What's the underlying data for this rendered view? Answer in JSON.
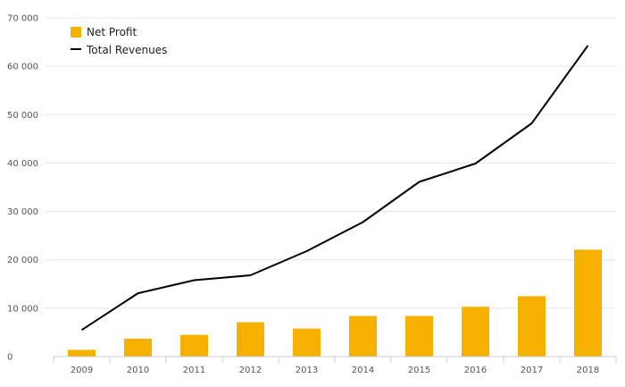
{
  "chart_data": {
    "type": "bar",
    "categories": [
      "2009",
      "2010",
      "2011",
      "2012",
      "2013",
      "2014",
      "2015",
      "2016",
      "2017",
      "2018"
    ],
    "series": [
      {
        "name": "Net Profit",
        "type": "bar",
        "color": "#f5b000",
        "values": [
          1400,
          3700,
          4500,
          7100,
          5800,
          8400,
          8400,
          10300,
          12500,
          22100
        ]
      },
      {
        "name": "Total Revenues",
        "type": "line",
        "color": "#000000",
        "values": [
          5500,
          13100,
          15800,
          16800,
          21800,
          27800,
          36100,
          39900,
          48200,
          64300
        ]
      }
    ],
    "title": "",
    "xlabel": "",
    "ylabel": "",
    "ylim": [
      0,
      70000
    ],
    "yticks": [
      "0",
      "10 000",
      "20 000",
      "30 000",
      "40 000",
      "50 000",
      "60 000",
      "70 000"
    ],
    "grid": true,
    "legend_position": "top-left"
  }
}
